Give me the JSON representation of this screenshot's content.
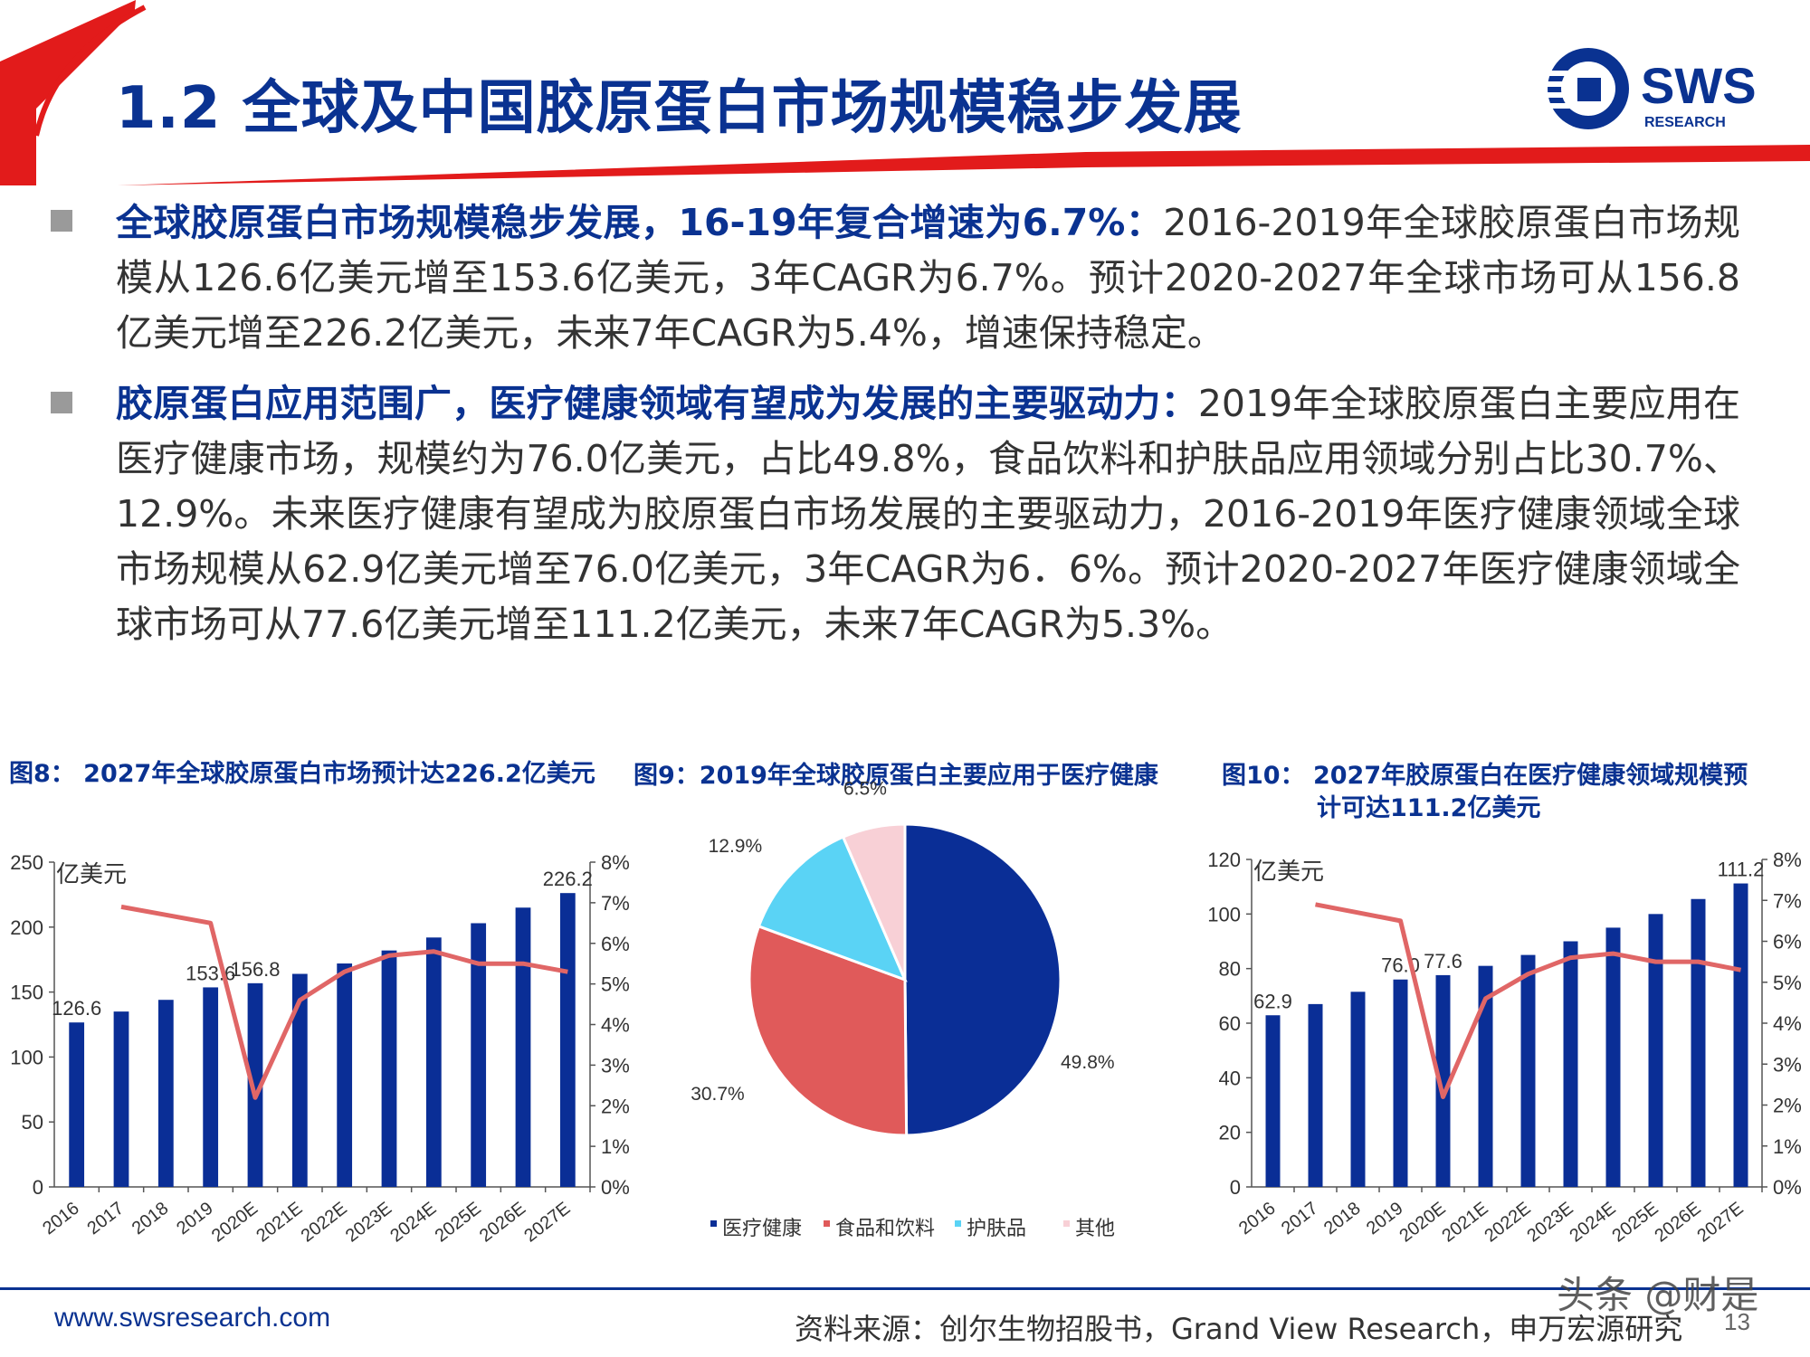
{
  "header": {
    "title": "1.2 全球及中国胶原蛋白市场规模稳步发展",
    "logo_text": "SWS",
    "logo_sub": "RESEARCH"
  },
  "bullets": [
    {
      "highlight": "全球胶原蛋白市场规模稳步发展，16-19年复合增速为6.7%：",
      "text": "2016-2019年全球胶原蛋白市场规模从126.6亿美元增至153.6亿美元，3年CAGR为6.7%。预计2020-2027年全球市场可从156.8亿美元增至226.2亿美元，未来7年CAGR为5.4%，增速保持稳定。"
    },
    {
      "highlight": "胶原蛋白应用范围广，医疗健康领域有望成为发展的主要驱动力：",
      "text": "2019年全球胶原蛋白主要应用在医疗健康市场，规模约为76.0亿美元，占比49.8%，食品饮料和护肤品应用领域分别占比30.7%、12.9%。未来医疗健康有望成为胶原蛋白市场发展的主要驱动力，2016-2019年医疗健康领域全球市场规模从62.9亿美元增至76.0亿美元，3年CAGR为6．6%。预计2020-2027年医疗健康领域全球市场可从77.6亿美元增至111.2亿美元，未来7年CAGR为5.3%。"
    }
  ],
  "figures": {
    "fig8_title": "图8： 2027年全球胶原蛋白市场预计达226.2亿美元",
    "fig9_title": "图9：2019年全球胶原蛋白主要应用于医疗健康",
    "fig10_title_line1": "图10： 2027年胶原蛋白在医疗健康领域规模预",
    "fig10_title_line2": "计可达111.2亿美元"
  },
  "chart_data": [
    {
      "type": "bar",
      "categories": [
        "2016",
        "2017",
        "2018",
        "2019",
        "2020E",
        "2021E",
        "2022E",
        "2023E",
        "2024E",
        "2025E",
        "2026E",
        "2027E"
      ],
      "series": [
        {
          "kind": "bar",
          "axis": "left",
          "values": [
            126.6,
            135,
            144,
            153.6,
            156.8,
            164,
            172,
            182,
            192,
            203,
            215,
            226.2
          ],
          "color": "#0a2e96"
        },
        {
          "kind": "line",
          "axis": "right",
          "values": [
            null,
            6.9,
            6.7,
            6.5,
            2.2,
            4.6,
            5.3,
            5.7,
            5.8,
            5.5,
            5.5,
            5.3
          ],
          "color": "#e06666"
        }
      ],
      "data_labels": {
        "0": "126.6",
        "3": "153.6",
        "4": "156.8",
        "11": "226.2"
      },
      "ylabel": "亿美元",
      "ylim": [
        0,
        250
      ],
      "yticks": [
        "0",
        "50",
        "100",
        "150",
        "200",
        "250"
      ],
      "y2lim": [
        0,
        8
      ],
      "y2ticks": [
        "0%",
        "1%",
        "2%",
        "3%",
        "4%",
        "5%",
        "6%",
        "7%",
        "8%"
      ]
    },
    {
      "type": "pie",
      "labels": [
        "医疗健康",
        "食品和饮料",
        "护肤品",
        "其他"
      ],
      "values": [
        49.8,
        30.7,
        12.9,
        6.5
      ],
      "value_labels": [
        "49.8%",
        "30.7%",
        "12.9%",
        "6.5%"
      ],
      "colors": [
        "#0a2e96",
        "#e05a5a",
        "#5ad3f5",
        "#f8d0d6"
      ],
      "legend": "bottom"
    },
    {
      "type": "bar",
      "categories": [
        "2016",
        "2017",
        "2018",
        "2019",
        "2020E",
        "2021E",
        "2022E",
        "2023E",
        "2024E",
        "2025E",
        "2026E",
        "2027E"
      ],
      "series": [
        {
          "kind": "bar",
          "axis": "left",
          "values": [
            62.9,
            67,
            71.5,
            76.0,
            77.6,
            81,
            85,
            90,
            95,
            100,
            105.5,
            111.2
          ],
          "color": "#0a2e96"
        },
        {
          "kind": "line",
          "axis": "right",
          "values": [
            null,
            6.9,
            6.7,
            6.5,
            2.2,
            4.6,
            5.2,
            5.6,
            5.7,
            5.5,
            5.5,
            5.3
          ],
          "color": "#e06666"
        }
      ],
      "data_labels": {
        "0": "62.9",
        "3": "76.0",
        "4": "77.6",
        "11": "111.2"
      },
      "ylabel": "亿美元",
      "ylim": [
        0,
        120
      ],
      "yticks": [
        "0",
        "20",
        "40",
        "60",
        "80",
        "100",
        "120"
      ],
      "y2lim": [
        0,
        8
      ],
      "y2ticks": [
        "0%",
        "1%",
        "2%",
        "3%",
        "4%",
        "5%",
        "6%",
        "7%",
        "8%"
      ]
    }
  ],
  "footer": {
    "url": "www.swsresearch.com",
    "source": "资料来源：创尔生物招股书，Grand View Research，申万宏源研究",
    "page": "13",
    "watermark": "头条 @财是"
  },
  "colors": {
    "brand_blue": "#0a3291",
    "accent_red": "#e21b1b"
  }
}
